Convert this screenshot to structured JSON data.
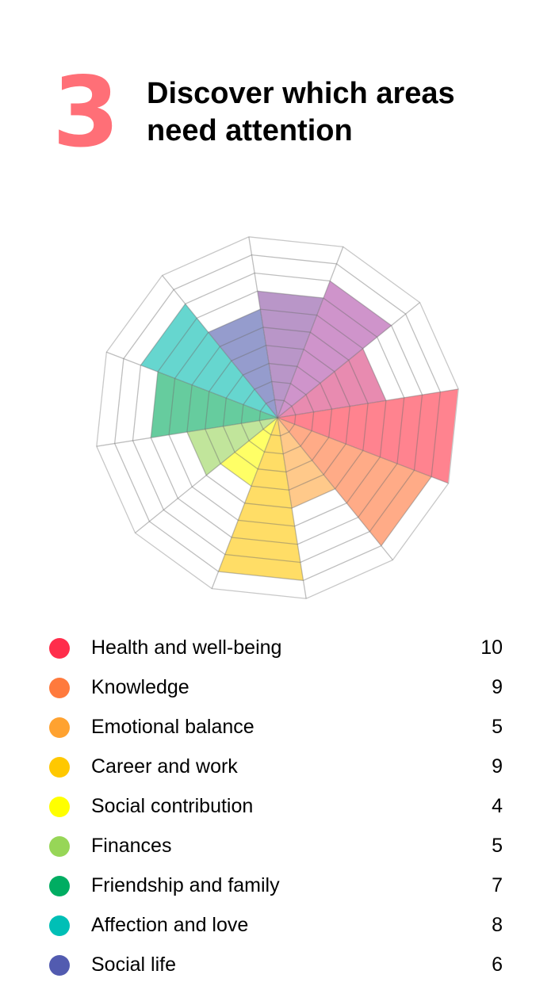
{
  "header": {
    "step_number": "3",
    "title_line1": "Discover which areas",
    "title_line2": "need attention",
    "accent_color": "#ff6f77"
  },
  "legend": {
    "items": [
      {
        "label": "Health and well-being",
        "value": "10",
        "color": "#ff2d4b"
      },
      {
        "label": "Knowledge",
        "value": "9",
        "color": "#ff7a3d"
      },
      {
        "label": "Emotional balance",
        "value": "5",
        "color": "#ffa230"
      },
      {
        "label": "Career and work",
        "value": "9",
        "color": "#ffc800"
      },
      {
        "label": "Social contribution",
        "value": "4",
        "color": "#ffff00"
      },
      {
        "label": "Finances",
        "value": "5",
        "color": "#97d657"
      },
      {
        "label": "Friendship and family",
        "value": "7",
        "color": "#00ad62"
      },
      {
        "label": "Affection and love",
        "value": "8",
        "color": "#00bfb6"
      },
      {
        "label": "Social life",
        "value": "6",
        "color": "#525bb0"
      }
    ]
  },
  "chart_data": {
    "type": "polar_area",
    "title": "Discover which areas need attention",
    "categories": [
      "Health and well-being",
      "Knowledge",
      "Emotional balance",
      "Career and work",
      "Social contribution",
      "Finances",
      "Friendship and family",
      "Affection and love",
      "Social life",
      "",
      "",
      ""
    ],
    "values": [
      10,
      9,
      5,
      9,
      4,
      5,
      7,
      8,
      6,
      7,
      8,
      6
    ],
    "fill_colors": [
      "#ff838f",
      "#ffab87",
      "#ffc98a",
      "#ffdd66",
      "#ffff66",
      "#c1e59b",
      "#66cc9e",
      "#66d6cf",
      "#959ccd",
      "#b996c8",
      "#cf94cb",
      "#e88bb0"
    ],
    "rlim": [
      0,
      10
    ],
    "ring_count": 10,
    "grid": true,
    "grid_color": "#c8c8c8",
    "legend_position": "bottom"
  }
}
